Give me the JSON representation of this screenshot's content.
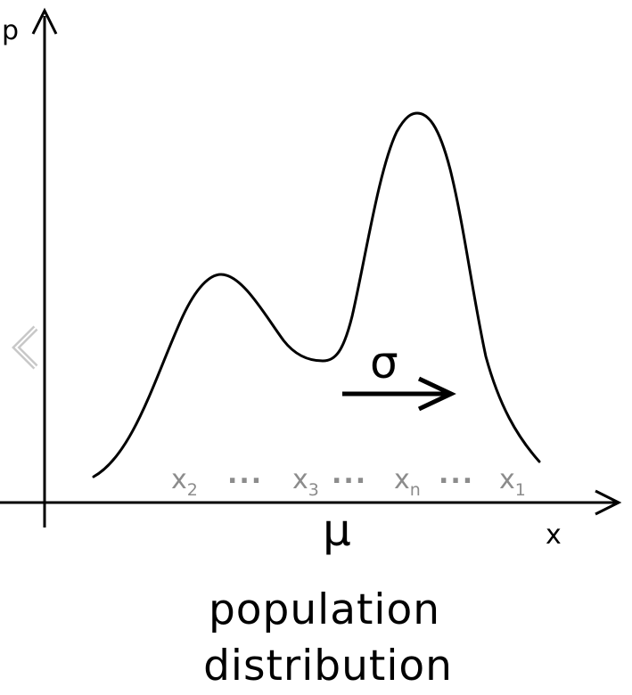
{
  "axes": {
    "y_label": "p",
    "x_label": "x"
  },
  "samples": [
    {
      "base": "x",
      "sub": "2"
    },
    {
      "base": "x",
      "sub": "3"
    },
    {
      "base": "x",
      "sub": "n"
    },
    {
      "base": "x",
      "sub": "1"
    }
  ],
  "ellipsis": "...",
  "symbols": {
    "sigma": "σ",
    "mu": "μ"
  },
  "caption": {
    "line1": "population",
    "line2": "distribution"
  },
  "colors": {
    "ink": "#000000",
    "sample_gray": "#8c8c8c",
    "nav_gray": "#c8c8c8"
  },
  "icons": {
    "nav": "chevron-left-icon"
  }
}
